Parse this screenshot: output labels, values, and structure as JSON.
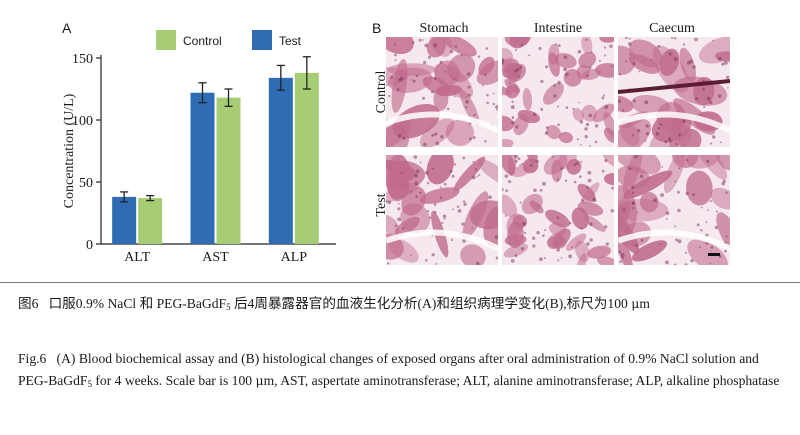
{
  "panel_a": {
    "letter": "A",
    "chart_data": {
      "type": "bar",
      "categories": [
        "ALT",
        "AST",
        "ALP"
      ],
      "series": [
        {
          "name": "Test",
          "color": "#2e6db3",
          "values": [
            38,
            122,
            134
          ],
          "errors": [
            4,
            8,
            10
          ]
        },
        {
          "name": "Control",
          "color": "#a6cd73",
          "values": [
            37,
            118,
            138
          ],
          "errors": [
            2,
            7,
            13
          ]
        }
      ],
      "ylabel": "Concentration (U/L)",
      "ylim": [
        0,
        150
      ],
      "yticks": [
        0,
        50,
        100,
        150
      ],
      "legend_position": "top",
      "grid": false
    }
  },
  "panel_b": {
    "letter": "B",
    "columns": [
      "Stomach",
      "Intestine",
      "Caecum"
    ],
    "rows": [
      "Control",
      "Test"
    ],
    "stain_color": "#c06a8c",
    "background_color": "#f6e8ef"
  },
  "caption": {
    "cn_fig": "图6",
    "cn_p1": "口服0.9% NaCl 和 PEG-BaGdF",
    "cn_sub": "5",
    "cn_p2": " 后4周暴露器官的血液生化分析(A)和组织病理学变化(B),标尺为100 ",
    "cn_mu": "μ",
    "cn_p3": "m",
    "en_fig": "Fig.6",
    "en_p1": "(A) Blood biochemical assay and (B) histological changes of exposed organs after oral administration of 0.9% NaCl solution and PEG-BaGdF",
    "en_sub": "5",
    "en_p2": " for 4 weeks. Scale bar is 100 ",
    "en_mu": "μ",
    "en_p3": "m, AST, aspertate aminotransferase; ALT, alanine aminotransferase; ALP, alkaline phosphatase"
  }
}
